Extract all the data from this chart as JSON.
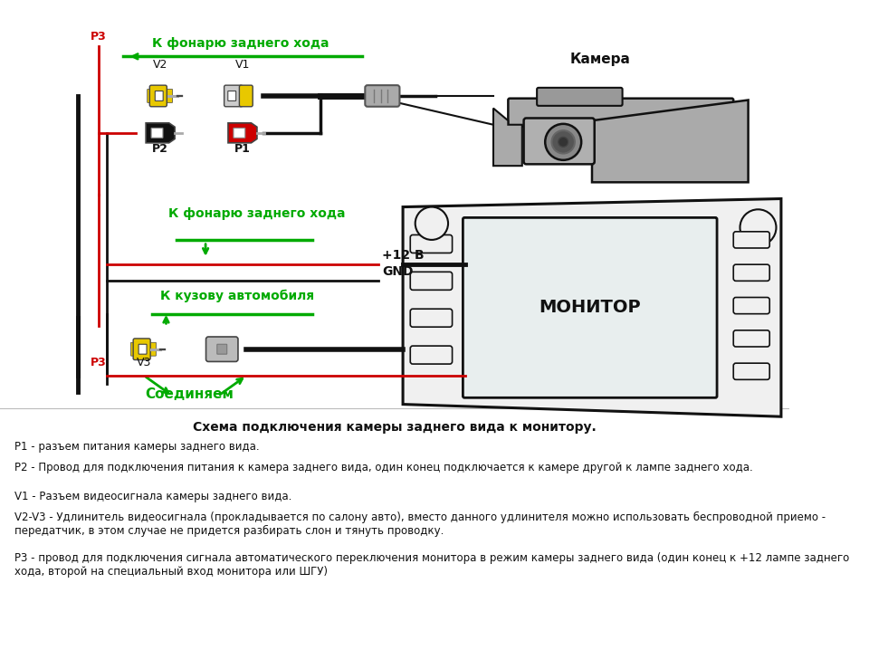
{
  "bg_color": "#ffffff",
  "green_color": "#00aa00",
  "red_color": "#cc0000",
  "yellow_color": "#e8c800",
  "black_color": "#111111",
  "dark_gray": "#444444",
  "mid_gray": "#888888",
  "light_gray": "#cccccc",
  "line_color": "#111111",
  "green_label1": "К фонарю заднего хода",
  "green_label2": "К фонарю заднего хода",
  "green_label3": "К кузову автомобиля",
  "green_label4": "Соединяем",
  "camera_label": "Камера",
  "monitor_label": "МОНИТОР",
  "plus12_label": "+12 B",
  "gnd_label": "GND",
  "desc_title": "Схема подключения камеры заднего вида к монитору.",
  "desc_p1": "P1 - разъем питания камеры заднего вида.",
  "desc_p2": "P2 - Провод для подключения питания к камера заднего вида, один конец подключается к камере другой к лампе заднего хода.",
  "desc_v1": "V1 - Разъем видеосигнала камеры заднего вида.",
  "desc_v2v3": "V2-V3 - Удлинитель видеосигнала (прокладывается по салону авто), вместо данного удлинителя можно использовать беспроводной приемо - передатчик, в этом случае не придется разбирать слон и тянуть проводку.",
  "desc_p3": "Р3 - провод для подключения сигнала автоматического переключения монитора в режим камеры заднего вида (один конец к +12 лампе заднего хода, второй на специальный вход монитора или ШГУ)"
}
